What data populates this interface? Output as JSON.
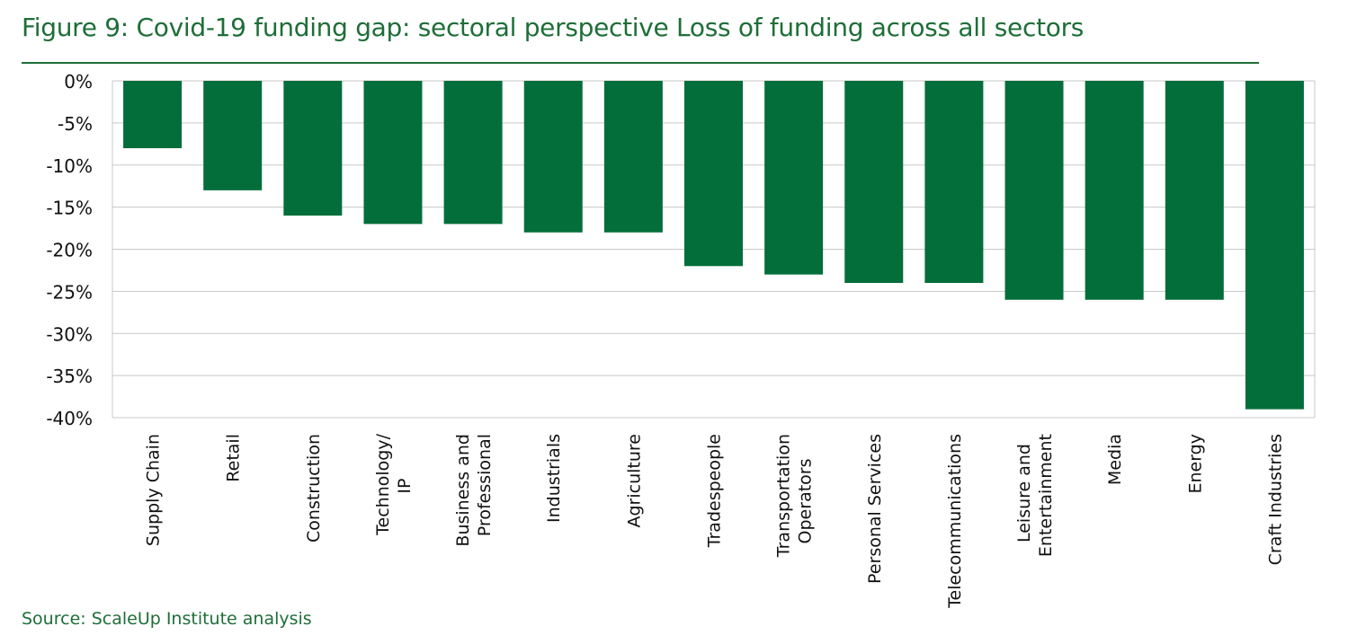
{
  "header": {
    "title": "Figure 9: Covid-19 funding gap: sectoral perspective Loss of funding across all sectors"
  },
  "footer": {
    "source": "Source: ScaleUp Institute analysis"
  },
  "colors": {
    "bar": "#046e3a",
    "accent": "#1e6e38",
    "grid": "#c8c8c8"
  },
  "chart_data": {
    "type": "bar",
    "title": "",
    "xlabel": "",
    "ylabel": "",
    "categories": [
      "Supply Chain",
      "Retail",
      "Construction",
      "Technology/ IP",
      "Business and Professional",
      "Industrials",
      "Agriculture",
      "Tradespeople",
      "Transportation Operators",
      "Personal Services",
      "Telecommunications",
      "Leisure and Entertainment",
      "Media",
      "Energy",
      "Craft Industries"
    ],
    "category_label_lines": [
      [
        "Supply Chain"
      ],
      [
        "Retail"
      ],
      [
        "Construction"
      ],
      [
        "Technology/",
        "IP"
      ],
      [
        "Business and",
        "Professional"
      ],
      [
        "Industrials"
      ],
      [
        "Agriculture"
      ],
      [
        "Tradespeople"
      ],
      [
        "Transportation",
        "Operators"
      ],
      [
        "Personal Services"
      ],
      [
        "Telecommunications"
      ],
      [
        "Leisure and",
        "Entertainment"
      ],
      [
        "Media"
      ],
      [
        "Energy"
      ],
      [
        "Craft Industries"
      ]
    ],
    "values": [
      -8,
      -13,
      -16,
      -17,
      -17,
      -18,
      -18,
      -22,
      -23,
      -24,
      -24,
      -26,
      -26,
      -26,
      -39
    ],
    "ylim": [
      -40,
      0
    ],
    "yticks": [
      0,
      -5,
      -10,
      -15,
      -20,
      -25,
      -30,
      -35,
      -40
    ],
    "ytick_labels": [
      "0%",
      "-5%",
      "-10%",
      "-15%",
      "-20%",
      "-25%",
      "-30%",
      "-35%",
      "-40%"
    ],
    "grid": true,
    "legend": "none"
  }
}
